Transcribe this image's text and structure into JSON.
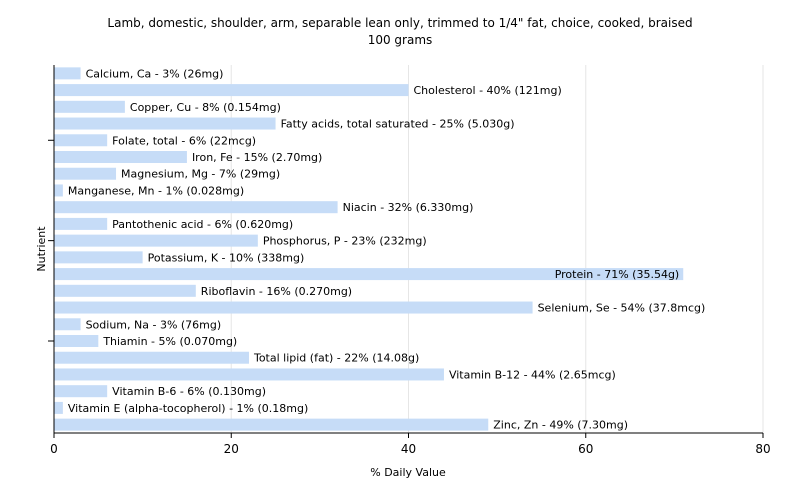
{
  "chart_data": {
    "type": "bar",
    "orientation": "horizontal",
    "title": "Lamb, domestic, shoulder, arm, separable lean only, trimmed to 1/4\" fat, choice, cooked, braised",
    "subtitle": "100 grams",
    "xlabel": "% Daily Value",
    "ylabel": "Nutrient",
    "xlim": [
      0,
      80
    ],
    "xticks": [
      0,
      20,
      40,
      60,
      80
    ],
    "grid": true,
    "bar_color": "#c6dcf7",
    "categories": [
      "Calcium, Ca",
      "Cholesterol",
      "Copper, Cu",
      "Fatty acids, total saturated",
      "Folate, total",
      "Iron, Fe",
      "Magnesium, Mg",
      "Manganese, Mn",
      "Niacin",
      "Pantothenic acid",
      "Phosphorus, P",
      "Potassium, K",
      "Protein",
      "Riboflavin",
      "Selenium, Se",
      "Sodium, Na",
      "Thiamin",
      "Total lipid (fat)",
      "Vitamin B-12",
      "Vitamin B-6",
      "Vitamin E (alpha-tocopherol)",
      "Zinc, Zn"
    ],
    "values": [
      3,
      40,
      8,
      25,
      6,
      15,
      7,
      1,
      32,
      6,
      23,
      10,
      71,
      16,
      54,
      3,
      5,
      22,
      44,
      6,
      1,
      49
    ],
    "labels": [
      "Calcium, Ca - 3% (26mg)",
      "Cholesterol - 40% (121mg)",
      "Copper, Cu - 8% (0.154mg)",
      "Fatty acids, total saturated - 25% (5.030g)",
      "Folate, total - 6% (22mcg)",
      "Iron, Fe - 15% (2.70mg)",
      "Magnesium, Mg - 7% (29mg)",
      "Manganese, Mn - 1% (0.028mg)",
      "Niacin - 32% (6.330mg)",
      "Pantothenic acid - 6% (0.620mg)",
      "Phosphorus, P - 23% (232mg)",
      "Potassium, K - 10% (338mg)",
      "Protein - 71% (35.54g)",
      "Riboflavin - 16% (0.270mg)",
      "Selenium, Se - 54% (37.8mcg)",
      "Sodium, Na - 3% (76mg)",
      "Thiamin - 5% (0.070mg)",
      "Total lipid (fat) - 22% (14.08g)",
      "Vitamin B-12 - 44% (2.65mcg)",
      "Vitamin B-6 - 6% (0.130mg)",
      "Vitamin E (alpha-tocopherol) - 1% (0.18mg)",
      "Zinc, Zn - 49% (7.30mg)"
    ]
  }
}
